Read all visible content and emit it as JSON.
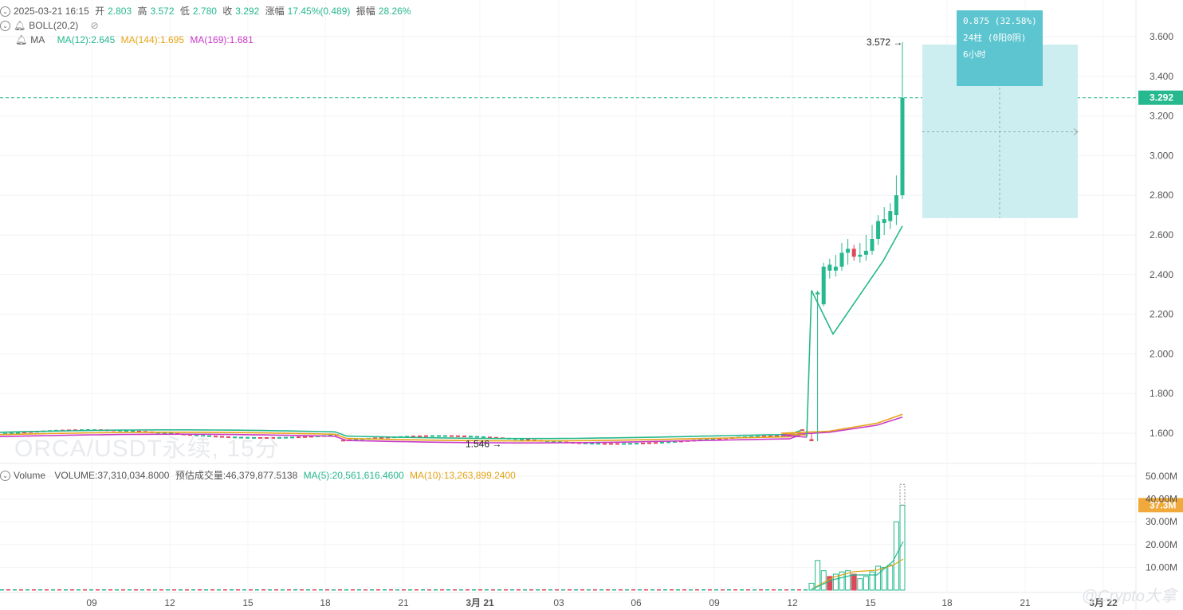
{
  "ohlc": {
    "datetime": "2025-03-21 16:15",
    "open_label": "开",
    "open": "2.803",
    "high_label": "高",
    "high": "3.572",
    "low_label": "低",
    "low": "2.780",
    "close_label": "收",
    "close": "3.292",
    "change_label": "涨幅",
    "change": "17.45%(0.489)",
    "amplitude_label": "振幅",
    "amplitude": "28.26%"
  },
  "boll": {
    "label": "BOLL(20,2)"
  },
  "ma": {
    "label": "MA",
    "ma12": "MA(12):2.645",
    "ma144": "MA(144):1.695",
    "ma169": "MA(169):1.681"
  },
  "volume": {
    "label": "Volume",
    "value": "VOLUME:37,310,034.8000",
    "estimated": "预估成交量:46,379,877.5138",
    "ma5": "MA(5):20,561,616.4600",
    "ma10": "MA(10):13,263,899.2400"
  },
  "watermark": "ORCA/USDT永续, 15分",
  "brand": "@Crypto大拿",
  "measure_box": {
    "line1": "0.875 (32.58%)",
    "line2": "24柱 (0阳0阴)",
    "line3": "6小时"
  },
  "price_axis": {
    "ticks": [
      "3.600",
      "3.400",
      "3.200",
      "3.000",
      "2.800",
      "2.600",
      "2.400",
      "2.200",
      "2.000",
      "1.800",
      "1.600"
    ],
    "current": "3.292"
  },
  "volume_axis": {
    "ticks": [
      "50.00M",
      "40.00M",
      "30.00M",
      "20.00M",
      "10.00M"
    ],
    "current": "37.3M"
  },
  "time_axis": [
    "09",
    "12",
    "15",
    "18",
    "21",
    "3月 21",
    "03",
    "06",
    "09",
    "12",
    "15",
    "18",
    "21",
    "3月 22"
  ],
  "annotations": {
    "high": "3.572",
    "low": "1.546"
  },
  "colors": {
    "up": "#26b88e",
    "down": "#e0475a",
    "ma144": "#e5a417",
    "ma169": "#c93ac9",
    "measure": "#5cc5d0"
  },
  "chart_data": {
    "type": "candlestick",
    "price_range": [
      1.52,
      3.7
    ],
    "volume_range": [
      0,
      50000000
    ],
    "candles": [
      {
        "o": 1.57,
        "h": 1.6,
        "l": 1.56,
        "c": 1.56
      },
      {
        "o": 2.3,
        "h": 2.32,
        "l": 1.56,
        "c": 2.31
      },
      {
        "o": 2.25,
        "h": 2.46,
        "l": 2.24,
        "c": 2.44
      },
      {
        "o": 2.42,
        "h": 2.48,
        "l": 2.38,
        "c": 2.45
      },
      {
        "o": 2.42,
        "h": 2.5,
        "l": 2.39,
        "c": 2.44
      },
      {
        "o": 2.44,
        "h": 2.56,
        "l": 2.42,
        "c": 2.51
      },
      {
        "o": 2.51,
        "h": 2.58,
        "l": 2.45,
        "c": 2.53
      },
      {
        "o": 2.53,
        "h": 2.55,
        "l": 2.47,
        "c": 2.49
      },
      {
        "o": 2.49,
        "h": 2.56,
        "l": 2.46,
        "c": 2.5
      },
      {
        "o": 2.5,
        "h": 2.6,
        "l": 2.47,
        "c": 2.52
      },
      {
        "o": 2.52,
        "h": 2.65,
        "l": 2.5,
        "c": 2.58
      },
      {
        "o": 2.58,
        "h": 2.7,
        "l": 2.55,
        "c": 2.67
      },
      {
        "o": 2.66,
        "h": 2.74,
        "l": 2.6,
        "c": 2.68
      },
      {
        "o": 2.67,
        "h": 2.76,
        "l": 2.63,
        "c": 2.72
      },
      {
        "o": 2.7,
        "h": 2.9,
        "l": 2.65,
        "c": 2.8
      },
      {
        "o": 2.8,
        "h": 3.572,
        "l": 2.78,
        "c": 3.292
      }
    ],
    "volumes_m": [
      3,
      13,
      8.5,
      6,
      7,
      8,
      8.5,
      7,
      5,
      6,
      8,
      10.5,
      10,
      11,
      30,
      37.3
    ],
    "ma12": [
      [
        1018,
        2.32
      ],
      [
        1045,
        2.1
      ],
      [
        1108,
        2.47
      ],
      [
        1132,
        2.645
      ]
    ],
    "ma144": [
      [
        980,
        1.6
      ],
      [
        1040,
        1.61
      ],
      [
        1100,
        1.65
      ],
      [
        1132,
        1.695
      ]
    ],
    "ma169": [
      [
        980,
        1.59
      ],
      [
        1040,
        1.605
      ],
      [
        1100,
        1.64
      ],
      [
        1132,
        1.681
      ]
    ]
  }
}
